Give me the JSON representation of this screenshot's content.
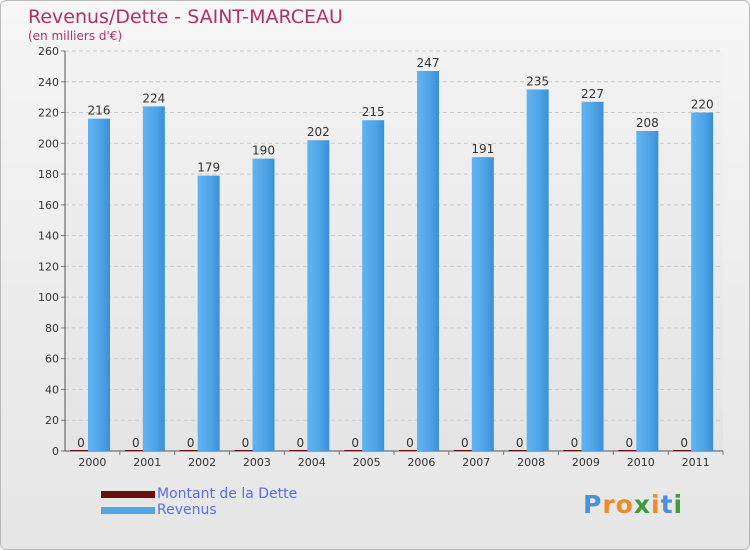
{
  "chart_data": {
    "type": "bar",
    "title": "Revenus/Dette - SAINT-MARCEAU",
    "subtitle": "(en milliers d'€)",
    "xlabel": "",
    "ylabel": "",
    "categories": [
      "2000",
      "2001",
      "2002",
      "2003",
      "2004",
      "2005",
      "2006",
      "2007",
      "2008",
      "2009",
      "2010",
      "2011"
    ],
    "series": [
      {
        "name": "Montant de la Dette",
        "color": "#6b0e0e",
        "values": [
          0,
          0,
          0,
          0,
          0,
          0,
          0,
          0,
          0,
          0,
          0,
          0
        ]
      },
      {
        "name": "Revenus",
        "color": "#4fa5e6",
        "values": [
          216,
          224,
          179,
          190,
          202,
          215,
          247,
          191,
          235,
          227,
          208,
          220
        ]
      }
    ],
    "ylim": [
      0,
      260
    ],
    "yticks": [
      0,
      20,
      40,
      60,
      80,
      100,
      120,
      140,
      160,
      180,
      200,
      220,
      240,
      260
    ],
    "grid": true,
    "legend": "bottom-left"
  },
  "logo": {
    "text": "Proxiti",
    "letters": [
      "P",
      "r",
      "o",
      "x",
      "i",
      "t",
      "i"
    ],
    "colors": [
      "#4d8fd9",
      "#f08a24",
      "#f08a24",
      "#3c9b3c",
      "#f08a24",
      "#4d8fd9",
      "#3c9b3c"
    ]
  }
}
